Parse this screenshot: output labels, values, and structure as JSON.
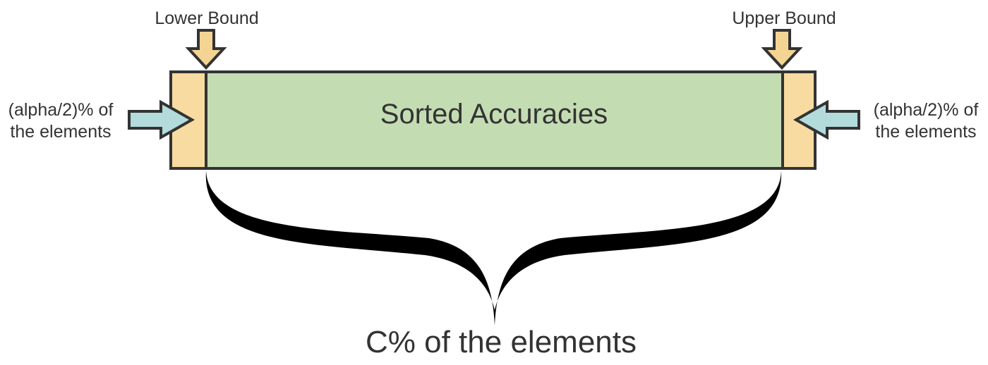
{
  "diagram": {
    "lower_bound_label": "Lower Bound",
    "upper_bound_label": "Upper Bound",
    "center_label": "Sorted Accuracies",
    "left_note": {
      "line1": "(alpha/2)% of",
      "line2": "the elements"
    },
    "right_note": {
      "line1": "(alpha/2)% of",
      "line2": "the elements"
    },
    "bottom_label": "C% of the elements"
  },
  "colors": {
    "tail_fill": "#f8dba0",
    "middle_fill": "#c4dcb2",
    "down_arrow_fill": "#f3d493",
    "side_arrow_fill": "#b3dbdb",
    "outline": "#333333",
    "brace": "#000000"
  }
}
